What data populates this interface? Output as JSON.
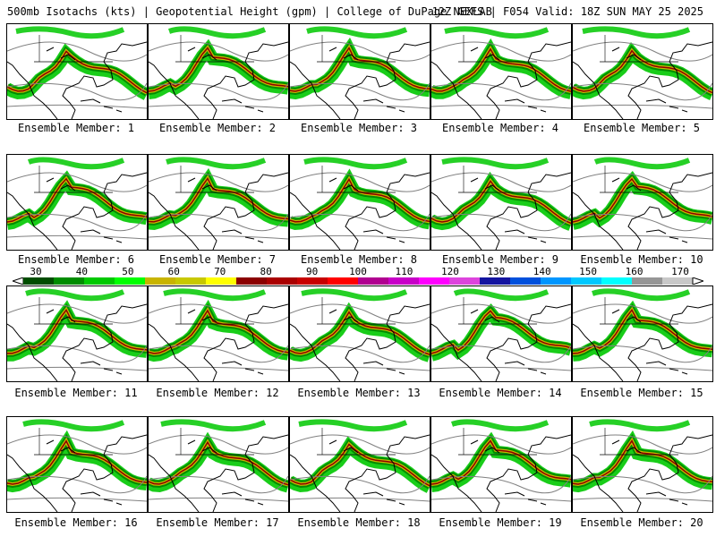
{
  "header": {
    "title": "500mb Isotachs (kts) | Geopotential Height (gpm) | College of DuPage NEXLAB",
    "valid": "12Z GEFS | F054 Valid: 18Z SUN MAY 25 2025"
  },
  "members": [
    "Ensemble Member: 1",
    "Ensemble Member: 2",
    "Ensemble Member: 3",
    "Ensemble Member: 4",
    "Ensemble Member: 5",
    "Ensemble Member: 6",
    "Ensemble Member: 7",
    "Ensemble Member: 8",
    "Ensemble Member: 9",
    "Ensemble Member: 10",
    "Ensemble Member: 11",
    "Ensemble Member: 12",
    "Ensemble Member: 13",
    "Ensemble Member: 14",
    "Ensemble Member: 15",
    "Ensemble Member: 16",
    "Ensemble Member: 17",
    "Ensemble Member: 18",
    "Ensemble Member: 19",
    "Ensemble Member: 20"
  ],
  "colorbar": {
    "ticks": [
      "30",
      "40",
      "50",
      "60",
      "70",
      "80",
      "90",
      "100",
      "110",
      "120",
      "130",
      "140",
      "150",
      "160",
      "170"
    ],
    "colors": [
      "#004d00",
      "#008c00",
      "#00c800",
      "#00ff00",
      "#c8b400",
      "#c8c800",
      "#ffff00",
      "#8b0000",
      "#aa0000",
      "#c80000",
      "#ff0000",
      "#b00090",
      "#c800c8",
      "#ff00ff",
      "#dd44dd",
      "#1414a0",
      "#0050dc",
      "#0096ff",
      "#00c8ff",
      "#00ffff",
      "#969696",
      "#c8c8c8"
    ]
  }
}
